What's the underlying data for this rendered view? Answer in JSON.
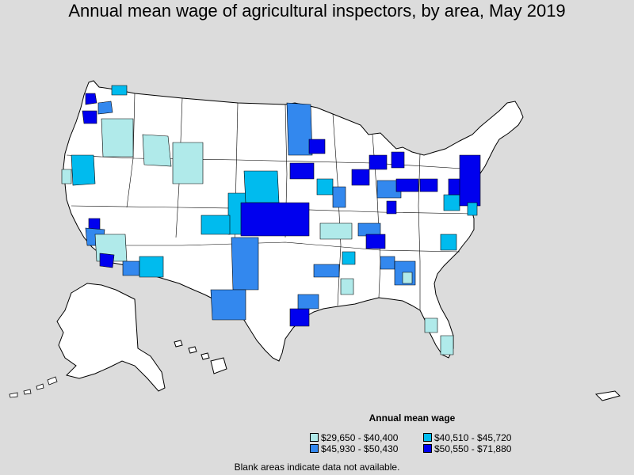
{
  "title": "Annual mean wage of agricultural inspectors, by area, May 2019",
  "legend": {
    "title": "Annual mean wage",
    "items": [
      {
        "label": "$29,650 - $40,400",
        "color": "#b0eaea"
      },
      {
        "label": "$40,510 - $45,720",
        "color": "#00bbee"
      },
      {
        "label": "$45,930 - $50,430",
        "color": "#3388ee"
      },
      {
        "label": "$50,550 - $71,880",
        "color": "#0000ee"
      }
    ]
  },
  "footnote": "Blank areas indicate data not available.",
  "colors": {
    "background": "#dcdcdc",
    "land": "#ffffff",
    "border": "#000000"
  }
}
